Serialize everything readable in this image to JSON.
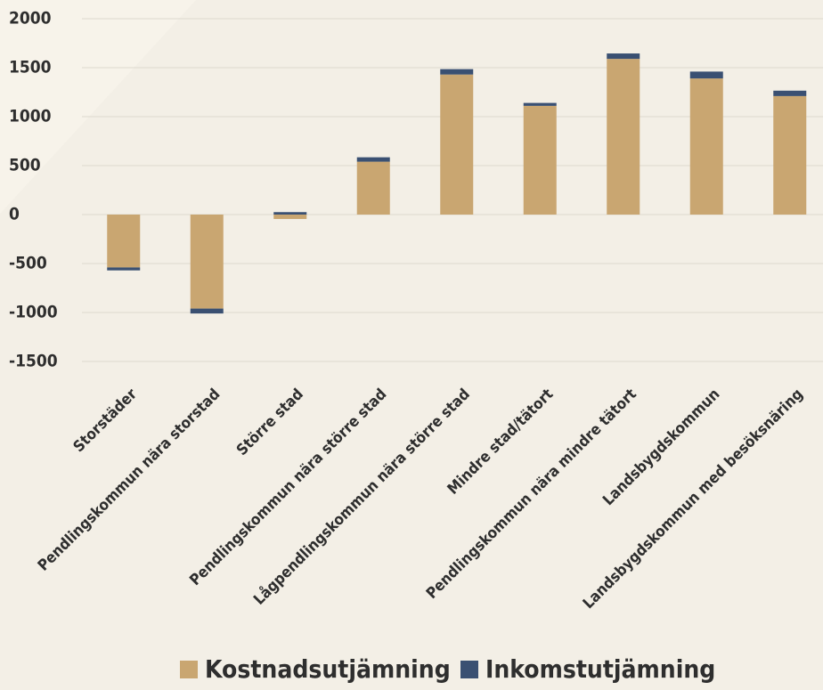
{
  "chart_data": {
    "type": "stacked_bar",
    "categories": [
      "Storstäder",
      "Pendlingskommun nära storstad",
      "Större stad",
      "Pendlingskommun nära större stad",
      "Lågpendlingskommun nära större stad",
      "Mindre stad/tätort",
      "Pendlingskommun nära mindre tätort",
      "Landsbygdskommun",
      "Landsbygdskommun med besöksnäring"
    ],
    "series": [
      {
        "name": "Kostnadsutjämning",
        "color": "#c9a671",
        "values": [
          -540,
          -960,
          -45,
          540,
          1430,
          1110,
          1590,
          1390,
          1210
        ]
      },
      {
        "name": "Inkomstutjämning",
        "color": "#3a5072",
        "values": [
          -30,
          -50,
          25,
          45,
          55,
          30,
          55,
          70,
          55
        ]
      }
    ],
    "ylim": [
      -1500,
      2000
    ],
    "yticks": [
      -1500,
      -1000,
      -500,
      0,
      500,
      1000,
      1500,
      2000
    ],
    "grid": true,
    "legend": "bottom"
  }
}
